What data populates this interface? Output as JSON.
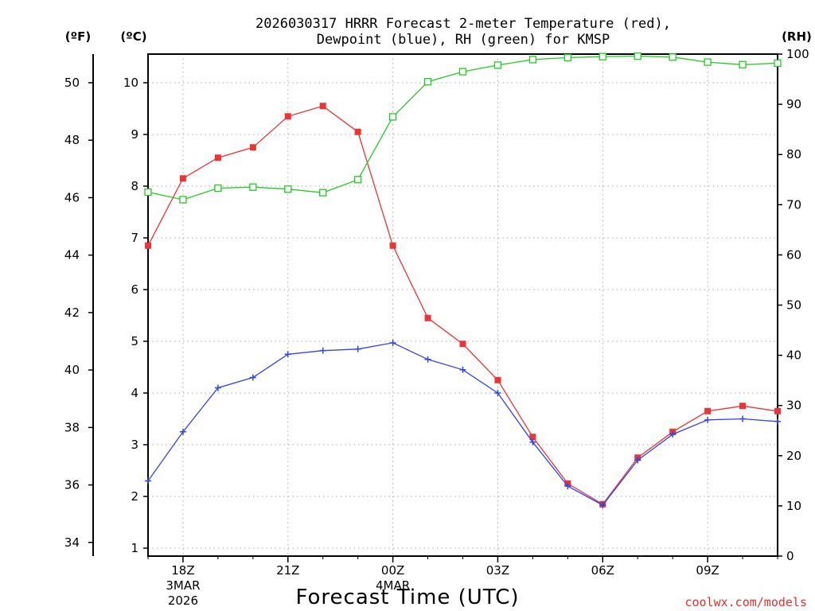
{
  "chart_data": {
    "type": "line",
    "title": [
      "2026030317 HRRR Forecast 2-meter Temperature (red),",
      "Dewpoint (blue), RH (green) for KMSP"
    ],
    "xlabel": "Forecast Time (UTC)",
    "credit": "coolwx.com/models",
    "left_outer_axis": {
      "unit": "(ºF)",
      "ticks": [
        34,
        36,
        38,
        40,
        42,
        44,
        46,
        48,
        50
      ]
    },
    "left_inner_axis": {
      "unit": "(ºC)",
      "ticks": [
        1,
        2,
        3,
        4,
        5,
        6,
        7,
        8,
        9,
        10
      ],
      "ylim": [
        0.8,
        10.6
      ]
    },
    "right_axis": {
      "unit": "(RH)",
      "ticks": [
        0,
        10,
        20,
        30,
        40,
        50,
        60,
        70,
        80,
        90,
        100
      ],
      "ylim": [
        0,
        100
      ]
    },
    "x_ticks": [
      {
        "label": "18Z",
        "hour": 1,
        "date": [
          "3MAR",
          "2026"
        ]
      },
      {
        "label": "21Z",
        "hour": 4
      },
      {
        "label": "00Z",
        "hour": 7,
        "date": [
          "4MAR"
        ]
      },
      {
        "label": "03Z",
        "hour": 10
      },
      {
        "label": "06Z",
        "hour": 13
      },
      {
        "label": "09Z",
        "hour": 16
      }
    ],
    "x_range": [
      0,
      18
    ],
    "series": [
      {
        "name": "Temperature",
        "axis": "C",
        "color": "#ee3333",
        "marker": "filled-square",
        "hours": [
          0,
          1,
          2,
          3,
          4,
          5,
          6,
          7,
          8,
          9,
          10,
          11,
          12,
          13,
          14,
          15,
          16,
          17,
          18
        ],
        "values": [
          6.85,
          8.15,
          8.55,
          8.75,
          9.35,
          9.55,
          9.05,
          6.85,
          5.45,
          4.95,
          4.25,
          3.15,
          2.25,
          1.85,
          2.75,
          3.25,
          3.65,
          3.75,
          3.65
        ]
      },
      {
        "name": "Dewpoint",
        "axis": "C",
        "color": "#3344ee",
        "marker": "plus",
        "hours": [
          0,
          1,
          2,
          3,
          4,
          5,
          6,
          7,
          8,
          9,
          10,
          11,
          12,
          13,
          14,
          15,
          16,
          17,
          18
        ],
        "values": [
          2.3,
          3.25,
          4.1,
          4.3,
          4.75,
          4.82,
          4.85,
          4.97,
          4.65,
          4.45,
          4.0,
          3.05,
          2.2,
          1.83,
          2.7,
          3.2,
          3.48,
          3.5,
          3.45
        ]
      },
      {
        "name": "RH",
        "axis": "RH",
        "color": "#22cc22",
        "marker": "open-square",
        "hours": [
          0,
          1,
          2,
          3,
          4,
          5,
          6,
          7,
          8,
          9,
          10,
          11,
          12,
          13,
          14,
          15,
          16,
          17,
          18
        ],
        "values": [
          72.5,
          71,
          73.3,
          73.5,
          73.1,
          72.4,
          75,
          87.5,
          94.5,
          96.5,
          97.8,
          98.9,
          99.3,
          99.5,
          99.6,
          99.4,
          98.4,
          97.9,
          98.2
        ]
      }
    ]
  }
}
